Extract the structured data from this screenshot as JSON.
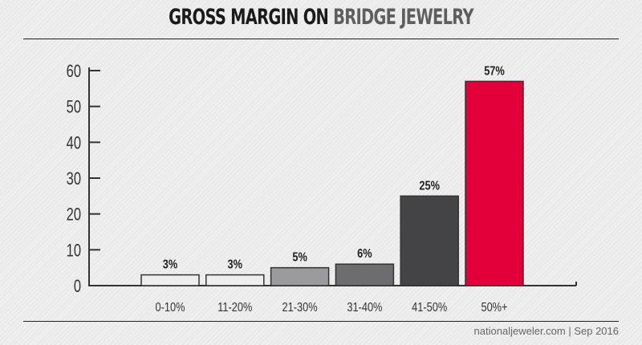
{
  "chart_data": {
    "type": "bar",
    "title": {
      "part1": "GROSS MARGIN ON",
      "part2": "BRIDGE JEWELRY"
    },
    "categories": [
      "0-10%",
      "11-20%",
      "21-30%",
      "31-40%",
      "41-50%",
      "50%+"
    ],
    "values": [
      3,
      3,
      5,
      6,
      25,
      57
    ],
    "data_labels": [
      "3%",
      "3%",
      "5%",
      "6%",
      "25%",
      "57%"
    ],
    "colors": [
      "#eeeeef",
      "#eeeeef",
      "#9b9b9d",
      "#6d6d70",
      "#444446",
      "#e3003a"
    ],
    "ylim": [
      0,
      60
    ],
    "yticks": [
      0,
      10,
      20,
      30,
      40,
      50,
      60
    ],
    "xlabel": "",
    "ylabel": "",
    "grid": false,
    "legend": "none"
  },
  "footer": "nationaljeweler.com | Sep 2016"
}
